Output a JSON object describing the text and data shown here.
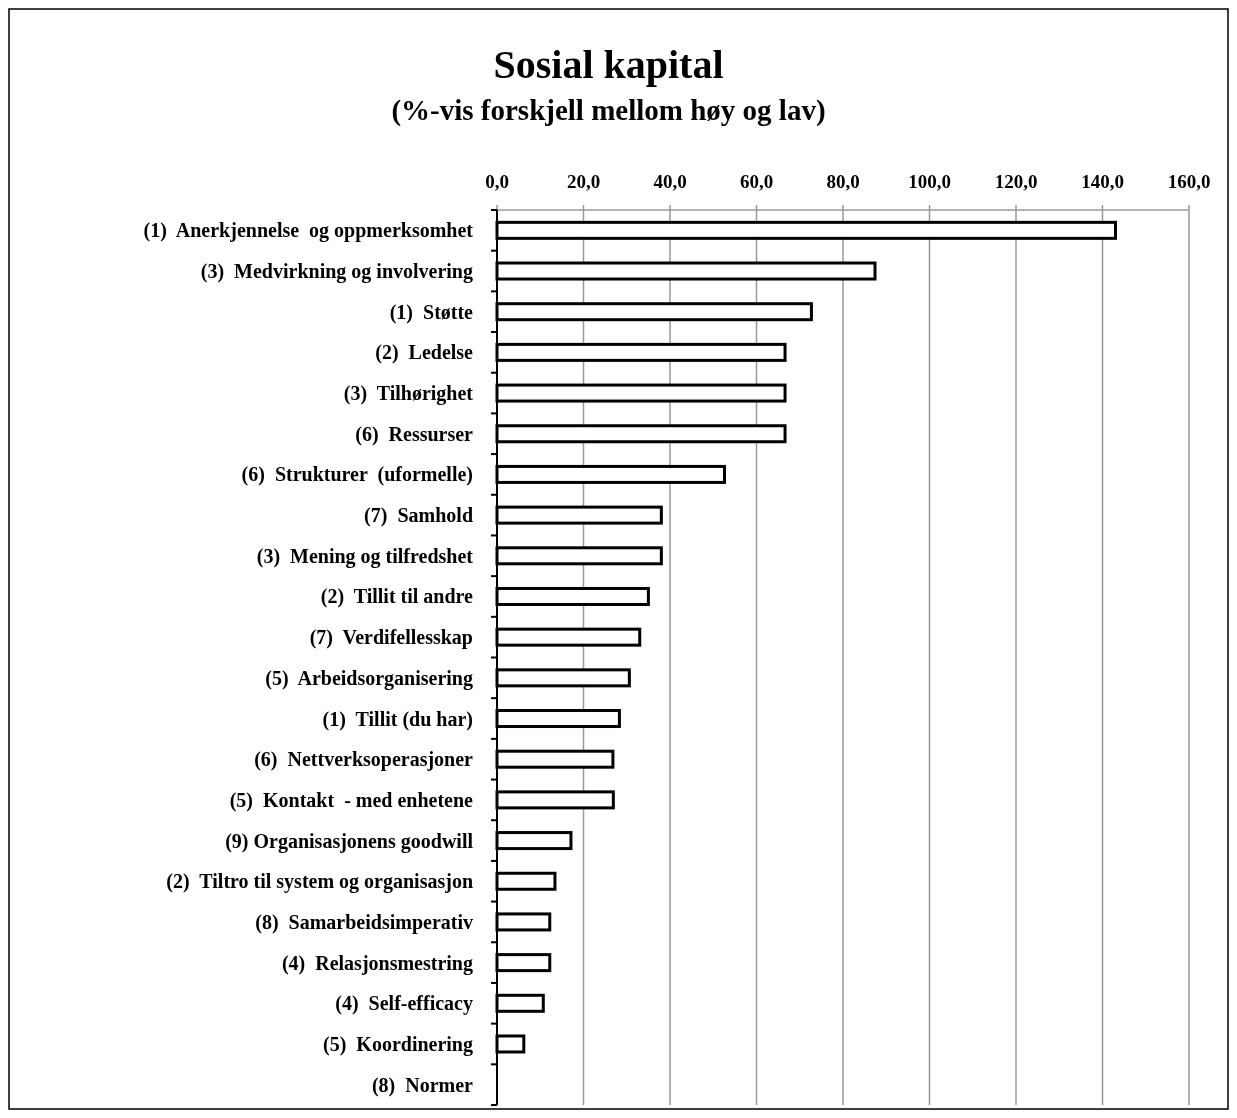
{
  "chart_data": {
    "type": "bar",
    "orientation": "horizontal",
    "title": "Sosial kapital",
    "subtitle": "(%-vis forskjell mellom høy og lav)",
    "categories": [
      "(1)  Anerkjennelse  og oppmerksomhet",
      "(3)  Medvirkning og involvering",
      "(1)  Støtte",
      "(2)  Ledelse",
      "(3)  Tilhørighet",
      "(6)  Ressurser",
      "(6)  Strukturer  (uformelle)",
      "(7)  Samhold",
      "(3)  Mening og tilfredshet",
      "(2)  Tillit til andre",
      "(7)  Verdifellesskap",
      "(5)  Arbeidsorganisering",
      "(1)  Tillit (du har)",
      "(6)  Nettverksoperasjoner",
      "(5)  Kontakt  - med enhetene",
      "(9) Organisasjonens goodwill",
      "(2)  Tiltro til system og organisasjon",
      "(8)  Samarbeidsimperativ",
      "(4)  Relasjonsmestring",
      "(4)  Self-efficacy",
      "(5)  Koordinering",
      "(8)  Normer"
    ],
    "values": [
      143.0,
      87.4,
      72.7,
      66.6,
      66.6,
      66.6,
      52.6,
      38.0,
      38.0,
      35.0,
      33.0,
      30.6,
      28.3,
      26.8,
      26.9,
      17.1,
      13.4,
      12.2,
      12.2,
      10.7,
      6.2,
      0
    ],
    "color": "#ffffff",
    "xlim": [
      0,
      160
    ],
    "xticks": [
      {
        "value": 0,
        "label": "0,0"
      },
      {
        "value": 20,
        "label": "20,0"
      },
      {
        "value": 40,
        "label": "40,0"
      },
      {
        "value": 60,
        "label": "60,0"
      },
      {
        "value": 80,
        "label": "80,0"
      },
      {
        "value": 100,
        "label": "100,0"
      },
      {
        "value": 120,
        "label": "120,0"
      },
      {
        "value": 140,
        "label": "140,0"
      },
      {
        "value": 160,
        "label": "160,0"
      }
    ],
    "grid": "x"
  }
}
